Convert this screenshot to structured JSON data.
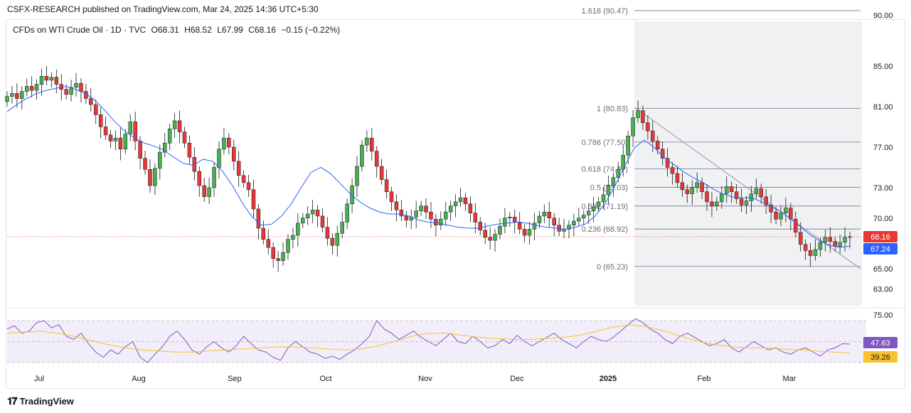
{
  "header": {
    "published": "CSFX-RESEARCH published on TradingView.com, Mar 24, 2025 14:36 UTC+5:30"
  },
  "legend": {
    "symbol": "CFDs on WTI Crude Oil · 1D · TVC",
    "open": "O68.31",
    "high": "H68.52",
    "low": "L67.99",
    "close": "C68.16",
    "change": "−0.15 (−0.22%)"
  },
  "colors": {
    "up": "#4caf50",
    "down": "#e53935",
    "ma": "#2962ff",
    "rsi": "#7e57c2",
    "rsi_ma": "#fbc02d",
    "fib": "#787b86"
  },
  "chart_data": [
    {
      "type": "candlestick",
      "ylim": [
        62.5,
        92.5
      ],
      "y_ticks": [
        "90.00",
        "85.00",
        "81.00",
        "77.00",
        "73.00",
        "70.00",
        "65.00",
        "63.00"
      ],
      "x_ticks": [
        "Jul",
        "Aug",
        "Sep",
        "Oct",
        "Nov",
        "Dec",
        "2025",
        "Feb",
        "Mar"
      ],
      "last_price_label": "68.16",
      "ma_label": "67.24",
      "fib_levels": [
        {
          "label": "1.618 (90.47)",
          "value": 90.47
        },
        {
          "label": "1 (80.83)",
          "value": 80.83
        },
        {
          "label": "0.786 (77.50)",
          "value": 77.5
        },
        {
          "label": "0.618 (74.87)",
          "value": 74.87
        },
        {
          "label": "0.5 (73.03)",
          "value": 73.03
        },
        {
          "label": "0.382 (71.19)",
          "value": 71.19
        },
        {
          "label": "0.236 (68.92)",
          "value": 68.92
        },
        {
          "label": "0 (65.23)",
          "value": 65.23
        }
      ],
      "close_series": [
        82.0,
        82.3,
        81.8,
        82.5,
        83.0,
        82.6,
        83.2,
        84.0,
        83.6,
        83.9,
        83.2,
        82.7,
        82.2,
        82.9,
        83.3,
        82.5,
        81.8,
        81.2,
        80.2,
        79.0,
        78.2,
        77.6,
        77.9,
        76.8,
        78.3,
        79.5,
        77.6,
        75.9,
        74.8,
        73.2,
        74.9,
        76.5,
        77.4,
        78.8,
        79.6,
        78.5,
        77.4,
        76.0,
        74.6,
        73.2,
        72.1,
        73.0,
        75.0,
        76.8,
        77.9,
        77.0,
        75.6,
        74.2,
        73.5,
        72.8,
        70.9,
        69.0,
        67.9,
        67.1,
        66.0,
        65.8,
        66.6,
        67.9,
        68.3,
        69.5,
        70.0,
        70.4,
        70.8,
        70.2,
        69.1,
        68.0,
        67.3,
        68.5,
        69.6,
        71.4,
        73.2,
        75.1,
        77.2,
        77.9,
        76.6,
        75.1,
        73.8,
        72.6,
        71.6,
        70.8,
        70.2,
        69.8,
        70.1,
        70.7,
        71.2,
        70.6,
        69.9,
        69.3,
        69.9,
        70.6,
        71.2,
        71.6,
        72.0,
        71.4,
        70.5,
        69.6,
        68.8,
        68.1,
        67.8,
        68.4,
        69.2,
        70.0,
        70.1,
        69.6,
        68.9,
        68.3,
        68.9,
        69.5,
        70.2,
        70.6,
        70.0,
        69.3,
        68.7,
        68.9,
        69.3,
        69.7,
        70.0,
        70.3,
        70.7,
        71.1,
        71.6,
        72.3,
        73.2,
        74.0,
        74.8,
        76.2,
        78.1,
        79.9,
        80.6,
        79.4,
        78.6,
        77.6,
        76.8,
        75.9,
        75.0,
        74.4,
        73.5,
        72.8,
        72.4,
        73.0,
        73.5,
        72.6,
        71.6,
        71.2,
        71.6,
        72.4,
        73.1,
        72.6,
        71.9,
        71.3,
        71.7,
        72.4,
        72.9,
        72.1,
        71.3,
        70.6,
        69.9,
        70.5,
        71.0,
        69.9,
        68.6,
        67.4,
        66.8,
        66.3,
        66.9,
        67.6,
        68.1,
        67.7,
        67.2,
        67.6,
        68.1,
        68.16
      ],
      "ma_series": [
        80.5,
        81.2,
        81.8,
        82.3,
        82.6,
        82.8,
        83.0,
        82.7,
        82.3,
        81.6,
        80.6,
        79.5,
        78.6,
        77.9,
        77.4,
        77.1,
        76.7,
        76.0,
        75.4,
        75.2,
        75.8,
        75.6,
        74.6,
        73.2,
        71.5,
        70.1,
        69.3,
        69.4,
        70.2,
        71.4,
        73.0,
        74.5,
        75.0,
        74.4,
        73.4,
        72.4,
        71.6,
        71.0,
        70.6,
        70.4,
        70.4,
        70.2,
        69.8,
        69.6,
        69.5,
        69.3,
        69.1,
        69.0,
        69.0,
        69.2,
        69.4,
        69.5,
        69.6,
        69.5,
        69.3,
        69.1,
        69.0,
        68.9,
        69.1,
        69.4,
        70.2,
        71.4,
        73.1,
        75.1,
        76.9,
        77.7,
        77.0,
        76.0,
        75.3,
        74.6,
        74.0,
        73.5,
        72.9,
        72.4,
        72.1,
        72.0,
        72.0,
        71.6,
        71.1,
        70.6,
        69.9,
        69.1,
        68.3,
        67.7,
        67.3,
        67.1,
        67.24
      ],
      "rsi_ylim": [
        25,
        80
      ],
      "rsi_ticks": [
        "75.00"
      ],
      "rsi_value_label": "47.63",
      "rsi_ma_label": "39.26",
      "rsi_series": [
        62,
        65,
        58,
        60,
        68,
        70,
        63,
        66,
        55,
        52,
        58,
        48,
        40,
        35,
        42,
        38,
        45,
        50,
        35,
        30,
        38,
        45,
        55,
        60,
        52,
        42,
        38,
        45,
        50,
        44,
        40,
        46,
        55,
        48,
        42,
        40,
        35,
        32,
        44,
        50,
        45,
        40,
        38,
        34,
        36,
        33,
        38,
        42,
        48,
        55,
        70,
        62,
        58,
        52,
        56,
        60,
        54,
        50,
        46,
        52,
        58,
        50,
        48,
        55,
        50,
        44,
        46,
        52,
        48,
        56,
        50,
        46,
        50,
        54,
        58,
        52,
        48,
        44,
        50,
        55,
        52,
        50,
        54,
        60,
        66,
        72,
        68,
        62,
        58,
        52,
        48,
        55,
        58,
        54,
        50,
        46,
        48,
        52,
        44,
        40,
        45,
        50,
        46,
        42,
        44,
        40,
        38,
        42,
        44,
        40,
        36,
        42,
        44,
        48,
        47.63
      ],
      "rsi_ma_series": [
        58,
        59,
        60,
        58,
        55,
        51,
        47,
        44,
        42,
        41,
        40,
        40,
        41,
        42,
        43,
        44,
        45,
        45,
        44,
        43,
        42,
        43,
        46,
        50,
        55,
        58,
        58,
        56,
        54,
        53,
        52,
        52,
        53,
        54,
        56,
        60,
        64,
        66,
        64,
        60,
        55,
        50,
        47,
        45,
        44,
        44,
        43,
        42,
        41,
        40,
        39.26
      ]
    }
  ]
}
